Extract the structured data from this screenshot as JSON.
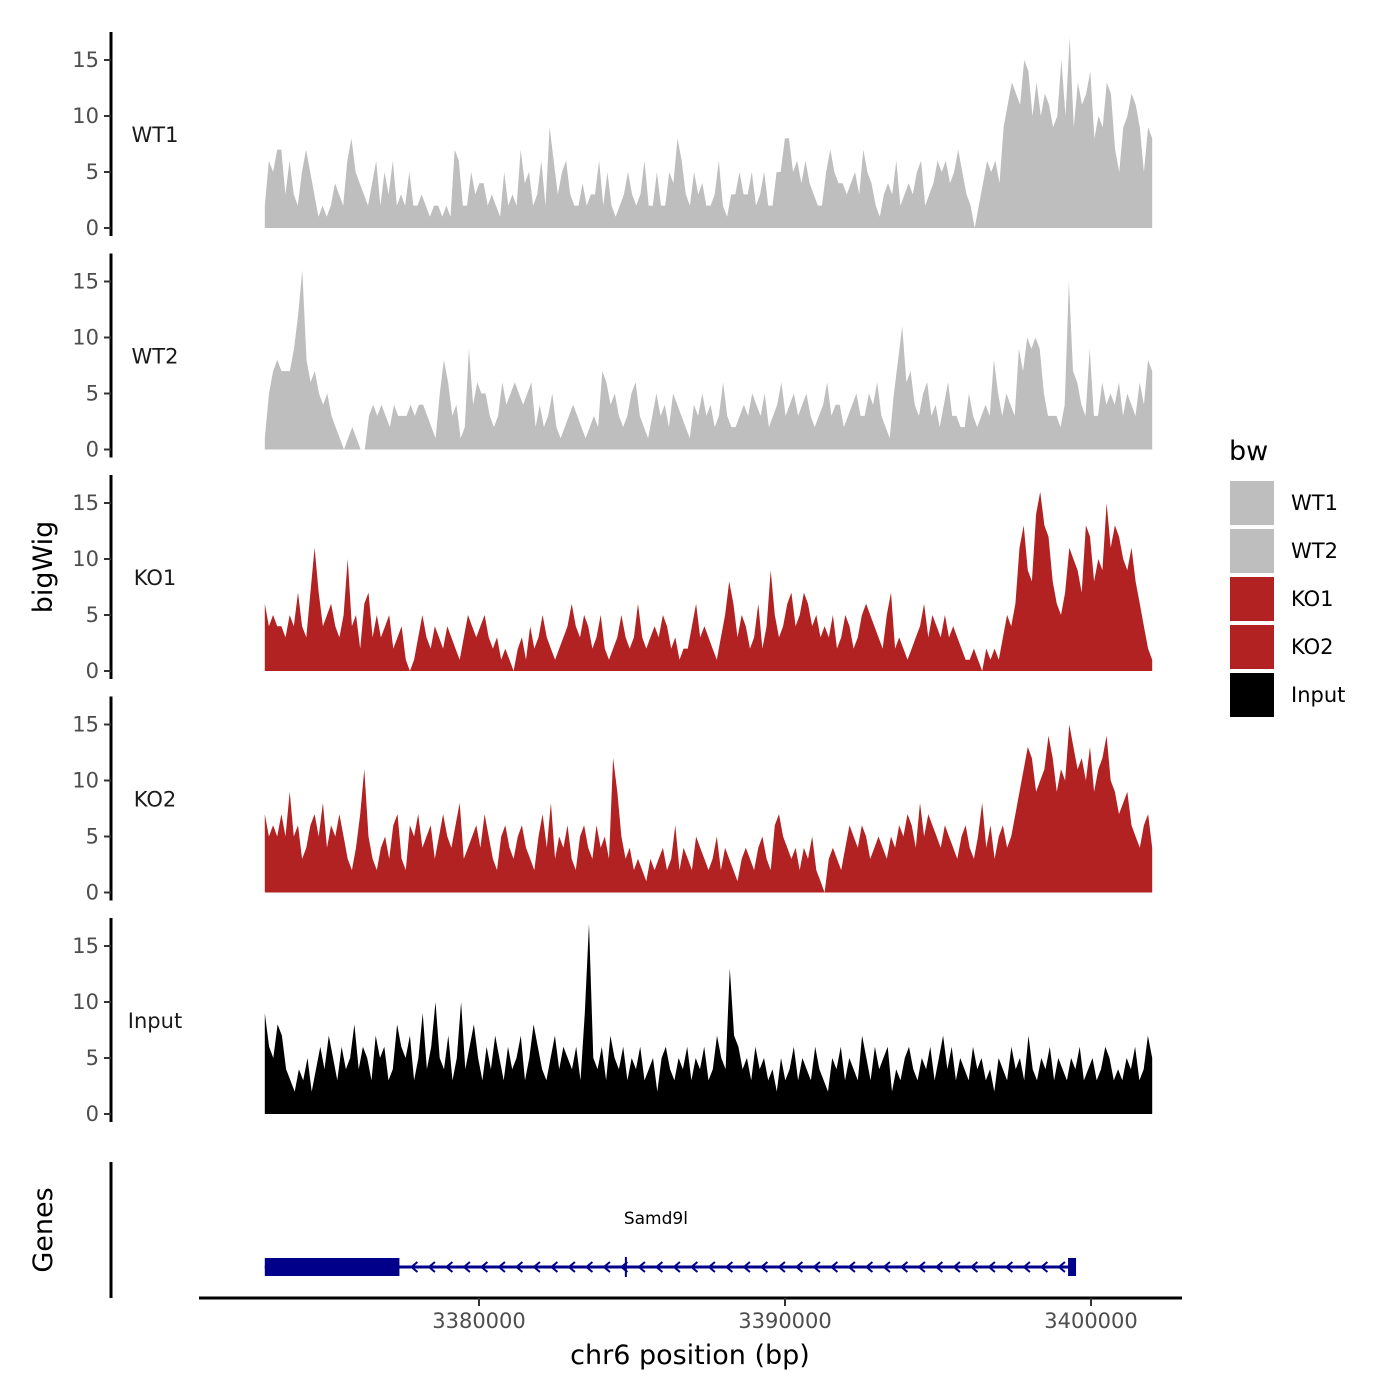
{
  "chart_data": {
    "type": "area",
    "chromosome": "chr6",
    "xlabel": "chr6 position (bp)",
    "ylabel": "bigWig",
    "xlim": [
      3371400,
      3403000
    ],
    "ylim": [
      0,
      17.5
    ],
    "x_ticks": [
      3380000,
      3390000,
      3400000
    ],
    "x_tick_labels": [
      "3380000",
      "3390000",
      "3400000"
    ],
    "y_ticks": [
      0,
      5,
      10,
      15
    ],
    "y_tick_labels": [
      "0",
      "5",
      "10",
      "15"
    ],
    "data_range": [
      3373000,
      3402000
    ],
    "legend": {
      "title": "bw",
      "entries": [
        {
          "label": "WT1",
          "color": "#bebebe"
        },
        {
          "label": "WT2",
          "color": "#bebebe"
        },
        {
          "label": "KO1",
          "color": "#b22222"
        },
        {
          "label": "KO2",
          "color": "#b22222"
        },
        {
          "label": "Input",
          "color": "#000000"
        }
      ]
    },
    "series": [
      {
        "name": "WT1",
        "color": "#bebebe",
        "values": [
          2,
          6,
          5,
          7,
          7,
          3,
          6,
          3,
          2,
          5,
          7,
          5,
          3,
          1,
          2,
          1,
          2,
          4,
          3,
          2,
          6,
          8,
          5,
          4,
          3,
          2,
          4,
          6,
          2,
          5,
          3,
          6,
          2,
          3,
          2,
          5,
          2,
          2,
          3,
          2,
          1,
          2,
          2,
          1,
          2,
          1,
          7,
          6,
          2,
          2,
          5,
          3,
          4,
          4,
          2,
          3,
          2,
          1,
          5,
          2,
          3,
          2,
          7,
          4,
          5,
          2,
          3,
          6,
          2,
          9,
          6,
          3,
          5,
          6,
          3,
          2,
          2,
          4,
          2,
          3,
          3,
          6,
          2,
          5,
          2,
          1,
          2,
          3,
          5,
          3,
          2,
          3,
          6,
          2,
          2,
          5,
          2,
          2,
          5,
          4,
          8,
          6,
          3,
          2,
          5,
          3,
          4,
          2,
          2,
          3,
          6,
          2,
          1,
          3,
          3,
          5,
          3,
          3,
          5,
          2,
          3,
          5,
          2,
          2,
          5,
          5,
          8,
          8,
          5,
          6,
          4,
          6,
          4,
          3,
          2,
          2,
          5,
          7,
          5,
          4,
          4,
          3,
          4,
          5,
          3,
          7,
          5,
          4,
          2,
          1,
          3,
          4,
          3,
          6,
          2,
          3,
          4,
          3,
          5,
          6,
          2,
          3,
          4,
          6,
          5,
          6,
          4,
          5,
          7,
          5,
          3,
          2,
          0,
          2,
          4,
          6,
          5,
          6,
          4,
          9,
          11,
          13,
          12,
          11,
          15,
          14,
          10,
          13,
          10,
          12,
          11,
          9,
          10,
          15,
          10,
          17,
          9,
          13,
          11,
          12,
          14,
          8,
          10,
          9,
          13,
          12,
          7,
          5,
          9,
          10,
          12,
          11,
          9,
          5,
          9,
          8
        ],
        "peaks": [
          {
            "x": 3398450,
            "y": 17
          }
        ]
      },
      {
        "name": "WT2",
        "color": "#bebebe",
        "values": [
          1,
          5,
          7,
          8,
          7,
          7,
          7,
          9,
          12,
          16,
          8,
          6,
          7,
          5,
          4,
          5,
          3,
          2,
          1,
          0,
          1,
          2,
          1,
          0,
          0,
          3,
          4,
          3,
          4,
          3,
          2,
          4,
          3,
          3,
          3,
          4,
          3,
          4,
          4,
          3,
          2,
          1,
          5,
          8,
          6,
          3,
          4,
          1,
          2,
          9,
          4,
          6,
          5,
          5,
          3,
          2,
          3,
          6,
          4,
          5,
          6,
          5,
          4,
          5,
          6,
          2,
          4,
          2,
          3,
          5,
          2,
          1,
          2,
          3,
          4,
          3,
          2,
          1,
          2,
          3,
          2,
          7,
          6,
          4,
          5,
          3,
          2,
          3,
          5,
          6,
          3,
          2,
          1,
          3,
          5,
          3,
          4,
          2,
          5,
          4,
          3,
          2,
          1,
          4,
          3,
          5,
          3,
          4,
          2,
          3,
          6,
          3,
          2,
          2,
          3,
          4,
          3,
          5,
          4,
          3,
          5,
          2,
          3,
          4,
          6,
          3,
          4,
          5,
          3,
          4,
          5,
          3,
          2,
          3,
          4,
          6,
          3,
          4,
          4,
          2,
          3,
          4,
          5,
          3,
          3,
          5,
          4,
          6,
          3,
          2,
          1,
          5,
          8,
          11,
          6,
          7,
          4,
          3,
          5,
          6,
          3,
          4,
          2,
          4,
          6,
          3,
          3,
          2,
          2,
          5,
          3,
          2,
          3,
          4,
          3,
          8,
          5,
          3,
          5,
          4,
          3,
          9,
          7,
          10,
          9,
          10,
          9,
          5,
          3,
          3,
          3,
          2,
          4,
          15,
          7,
          6,
          4,
          3,
          9,
          3,
          3,
          6,
          4,
          5,
          4,
          6,
          3,
          5,
          4,
          3,
          6,
          4,
          8,
          7
        ]
      },
      {
        "name": "KO1",
        "color": "#b22222",
        "values": [
          6,
          4,
          5,
          4,
          4,
          3,
          5,
          4,
          7,
          4,
          3,
          7,
          11,
          7,
          4,
          5,
          6,
          4,
          3,
          5,
          10,
          4,
          5,
          2,
          6,
          7,
          3,
          5,
          3,
          4,
          5,
          2,
          3,
          4,
          1,
          0,
          1,
          3,
          5,
          3,
          2,
          4,
          3,
          2,
          4,
          3,
          2,
          1,
          3,
          5,
          4,
          3,
          4,
          5,
          3,
          2,
          3,
          1,
          2,
          1,
          0,
          2,
          3,
          1,
          4,
          2,
          3,
          5,
          3,
          2,
          1,
          2,
          3,
          4,
          6,
          4,
          3,
          5,
          4,
          2,
          3,
          5,
          2,
          1,
          2,
          3,
          5,
          3,
          2,
          3,
          6,
          3,
          2,
          3,
          4,
          3,
          5,
          4,
          2,
          3,
          1,
          2,
          2,
          4,
          6,
          3,
          4,
          3,
          2,
          1,
          3,
          5,
          8,
          6,
          3,
          5,
          4,
          2,
          3,
          6,
          2,
          4,
          9,
          5,
          3,
          4,
          6,
          7,
          4,
          5,
          7,
          6,
          4,
          5,
          3,
          4,
          3,
          5,
          2,
          3,
          5,
          4,
          2,
          3,
          5,
          6,
          5,
          4,
          3,
          2,
          5,
          7,
          2,
          3,
          2,
          1,
          2,
          3,
          4,
          6,
          3,
          5,
          4,
          3,
          5,
          3,
          4,
          3,
          2,
          1,
          1,
          2,
          1,
          0,
          2,
          1,
          2,
          1,
          3,
          5,
          4,
          6,
          11,
          13,
          9,
          8,
          14,
          16,
          13,
          12,
          8,
          6,
          5,
          7,
          11,
          10,
          9,
          7,
          13,
          12,
          8,
          10,
          9,
          15,
          11,
          13,
          12,
          10,
          9,
          11,
          8,
          6,
          4,
          2,
          1
        ]
      },
      {
        "name": "KO2",
        "color": "#b22222",
        "values": [
          7,
          5,
          6,
          5,
          7,
          5,
          9,
          5,
          6,
          3,
          4,
          6,
          7,
          5,
          8,
          4,
          6,
          5,
          7,
          5,
          3,
          2,
          4,
          7,
          11,
          5,
          3,
          2,
          4,
          5,
          3,
          6,
          7,
          3,
          2,
          6,
          5,
          7,
          4,
          5,
          6,
          3,
          5,
          7,
          5,
          4,
          6,
          8,
          3,
          4,
          5,
          6,
          4,
          7,
          5,
          3,
          2,
          5,
          6,
          4,
          3,
          5,
          6,
          4,
          3,
          2,
          5,
          7,
          4,
          8,
          3,
          5,
          4,
          6,
          3,
          2,
          5,
          6,
          4,
          3,
          6,
          4,
          5,
          3,
          12,
          9,
          5,
          3,
          4,
          2,
          3,
          2,
          1,
          3,
          2,
          3,
          4,
          2,
          3,
          6,
          2,
          4,
          3,
          2,
          5,
          4,
          3,
          2,
          3,
          5,
          2,
          4,
          3,
          2,
          1,
          3,
          4,
          3,
          2,
          4,
          5,
          3,
          2,
          6,
          7,
          5,
          4,
          3,
          4,
          2,
          4,
          3,
          5,
          2,
          1,
          0,
          3,
          4,
          3,
          2,
          4,
          6,
          5,
          4,
          6,
          5,
          3,
          4,
          5,
          4,
          3,
          5,
          4,
          6,
          5,
          7,
          6,
          4,
          8,
          5,
          7,
          6,
          5,
          4,
          6,
          5,
          4,
          3,
          5,
          6,
          4,
          3,
          5,
          8,
          4,
          6,
          3,
          5,
          6,
          4,
          5,
          7,
          9,
          11,
          13,
          12,
          9,
          10,
          11,
          14,
          12,
          9,
          11,
          10,
          15,
          13,
          11,
          12,
          10,
          13,
          9,
          11,
          12,
          14,
          10,
          9,
          7,
          8,
          9,
          6,
          5,
          4,
          6,
          7,
          4
        ]
      },
      {
        "name": "Input",
        "color": "#000000",
        "values": [
          9,
          6,
          5,
          8,
          7,
          4,
          3,
          2,
          4,
          3,
          5,
          2,
          4,
          6,
          4,
          7,
          5,
          3,
          6,
          4,
          5,
          8,
          4,
          6,
          5,
          3,
          7,
          5,
          6,
          3,
          4,
          8,
          6,
          5,
          7,
          3,
          5,
          9,
          4,
          6,
          10,
          5,
          4,
          7,
          3,
          5,
          10,
          4,
          6,
          8,
          5,
          3,
          6,
          4,
          7,
          5,
          3,
          6,
          4,
          5,
          7,
          3,
          5,
          8,
          6,
          4,
          3,
          5,
          7,
          4,
          6,
          5,
          4,
          6,
          3,
          9,
          17,
          5,
          4,
          6,
          3,
          7,
          5,
          4,
          6,
          3,
          5,
          4,
          6,
          3,
          4,
          5,
          2,
          5,
          6,
          4,
          3,
          5,
          4,
          6,
          3,
          5,
          4,
          6,
          3,
          4,
          7,
          5,
          4,
          13,
          7,
          6,
          4,
          5,
          3,
          6,
          4,
          5,
          3,
          4,
          2,
          5,
          3,
          4,
          6,
          3,
          5,
          4,
          3,
          6,
          4,
          3,
          2,
          5,
          4,
          6,
          3,
          5,
          4,
          3,
          7,
          5,
          3,
          6,
          4,
          5,
          6,
          2,
          4,
          3,
          5,
          6,
          4,
          3,
          5,
          4,
          6,
          3,
          5,
          7,
          4,
          6,
          3,
          5,
          4,
          3,
          6,
          4,
          5,
          3,
          4,
          2,
          5,
          4,
          3,
          6,
          4,
          5,
          3,
          7,
          4,
          3,
          5,
          4,
          6,
          3,
          5,
          4,
          3,
          5,
          4,
          6,
          3,
          4,
          5,
          3,
          4,
          6,
          5,
          3,
          4,
          3,
          5,
          4,
          6,
          3,
          4,
          7,
          5
        ]
      }
    ],
    "gene_track": {
      "label": "Genes",
      "gene": "Samd9l",
      "strand": "-",
      "tx_start": 3373000,
      "tx_end": 3399500,
      "thick_start": 3373000,
      "thick_end": 3377400,
      "exon2_start": 3399250,
      "exon2_end": 3399500,
      "mid_tick": 3384800,
      "color": "#00008b"
    }
  }
}
